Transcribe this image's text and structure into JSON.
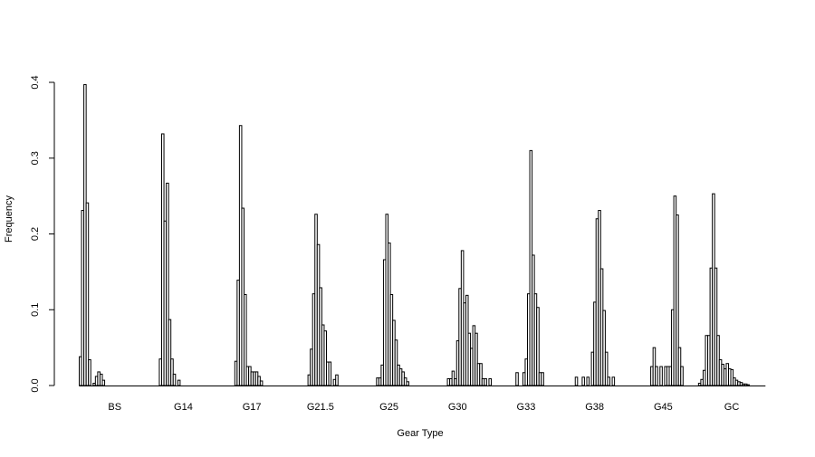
{
  "chart_data": {
    "type": "bar",
    "title": "",
    "xlabel": "Gear Type",
    "ylabel": "Frequency",
    "ylim": [
      0,
      0.4
    ],
    "yticks": [
      "0.0",
      "0.1",
      "0.2",
      "0.3",
      "0.4"
    ],
    "grid": false,
    "groups": [
      {
        "name": "BS",
        "values": [
          0.038,
          0.231,
          0.397,
          0.241,
          0.034,
          0,
          0.003,
          0.012,
          0.018,
          0.015,
          0.007,
          0,
          0,
          0,
          0,
          0,
          0,
          0,
          0,
          0,
          0,
          0,
          0,
          0,
          0,
          0,
          0,
          0,
          0,
          0
        ]
      },
      {
        "name": "G14",
        "values": [
          0,
          0,
          0,
          0,
          0,
          0.035,
          0.332,
          0.217,
          0.267,
          0.087,
          0.035,
          0.015,
          0,
          0.007,
          0,
          0,
          0,
          0,
          0,
          0,
          0,
          0,
          0,
          0,
          0,
          0,
          0,
          0,
          0,
          0
        ]
      },
      {
        "name": "G17",
        "values": [
          0,
          0,
          0,
          0,
          0,
          0,
          0,
          0,
          0.032,
          0.139,
          0.343,
          0.234,
          0.12,
          0.025,
          0.025,
          0.018,
          0.018,
          0.018,
          0.012,
          0.006,
          0,
          0,
          0,
          0,
          0,
          0,
          0,
          0,
          0,
          0
        ]
      },
      {
        "name": "G21.5",
        "values": [
          0,
          0,
          0,
          0,
          0,
          0,
          0,
          0,
          0,
          0,
          0.014,
          0.048,
          0.121,
          0.226,
          0.186,
          0.129,
          0.08,
          0.072,
          0.031,
          0.031,
          0,
          0.008,
          0.014,
          0,
          0,
          0,
          0,
          0,
          0,
          0
        ]
      },
      {
        "name": "G25",
        "values": [
          0,
          0,
          0,
          0,
          0,
          0,
          0,
          0,
          0,
          0,
          0.01,
          0.01,
          0.027,
          0.166,
          0.226,
          0.188,
          0.12,
          0.086,
          0.06,
          0.027,
          0.022,
          0.018,
          0.01,
          0.005,
          0,
          0,
          0,
          0,
          0,
          0
        ]
      },
      {
        "name": "G30",
        "values": [
          0,
          0,
          0,
          0,
          0,
          0,
          0,
          0,
          0,
          0,
          0,
          0.009,
          0.009,
          0.019,
          0.009,
          0.059,
          0.128,
          0.178,
          0.109,
          0.119,
          0.069,
          0.049,
          0.079,
          0.069,
          0.029,
          0.029,
          0.009,
          0.009,
          0,
          0.009
        ]
      },
      {
        "name": "G33",
        "values": [
          0,
          0,
          0,
          0,
          0,
          0,
          0,
          0,
          0,
          0,
          0,
          0.017,
          0,
          0,
          0.017,
          0.035,
          0.121,
          0.31,
          0.172,
          0.121,
          0.103,
          0.017,
          0.017,
          0,
          0,
          0,
          0,
          0,
          0,
          0
        ]
      },
      {
        "name": "G38",
        "values": [
          0,
          0,
          0,
          0,
          0,
          0,
          0,
          0.011,
          0,
          0,
          0.011,
          0,
          0.011,
          0,
          0.044,
          0.11,
          0.22,
          0.231,
          0.154,
          0.099,
          0.044,
          0.011,
          0,
          0.011,
          0,
          0,
          0,
          0,
          0,
          0
        ]
      },
      {
        "name": "G45",
        "values": [
          0,
          0,
          0,
          0,
          0,
          0,
          0,
          0,
          0,
          0,
          0.025,
          0.05,
          0.025,
          0,
          0.025,
          0,
          0.025,
          0.025,
          0.025,
          0.1,
          0.25,
          0.225,
          0.05,
          0.025,
          0,
          0,
          0,
          0,
          0,
          0
        ]
      },
      {
        "name": "GC",
        "values": [
          0,
          0.003,
          0.008,
          0.02,
          0.066,
          0.066,
          0.155,
          0.253,
          0.155,
          0.066,
          0.034,
          0.028,
          0.022,
          0.029,
          0.022,
          0.021,
          0.01,
          0.007,
          0.005,
          0.004,
          0.002,
          0.002,
          0.001,
          0,
          0,
          0,
          0,
          0,
          0,
          0
        ]
      }
    ]
  }
}
